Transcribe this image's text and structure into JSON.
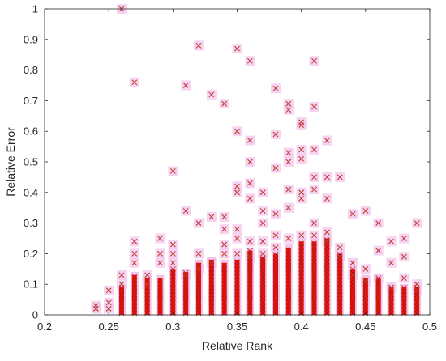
{
  "chart_data": {
    "type": "scatter",
    "xlabel": "Relative Rank",
    "ylabel": "Relative Error",
    "xlim": [
      0.2,
      0.5
    ],
    "ylim": [
      0,
      1
    ],
    "xticks": [
      "0.2",
      "0.25",
      "0.3",
      "0.35",
      "0.4",
      "0.45",
      "0.5"
    ],
    "yticks": [
      "0",
      "0.1",
      "0.2",
      "0.3",
      "0.4",
      "0.5",
      "0.6",
      "0.7",
      "0.8",
      "0.9",
      "1"
    ],
    "grid": false,
    "legend": "none",
    "marker": "x",
    "colors": {
      "marker": "#c0392b",
      "marker_dense": "#e8170f",
      "halo": "#f2c4ec",
      "axis": "#262626"
    },
    "series": [
      {
        "points": [
          [
            0.24,
            0.02
          ],
          [
            0.24,
            0.03
          ],
          [
            0.25,
            0.08
          ],
          [
            0.25,
            0.04
          ],
          [
            0.25,
            0.02
          ],
          [
            0.26,
            1.0
          ],
          [
            0.26,
            0.13
          ],
          [
            0.26,
            0.1
          ],
          [
            0.27,
            0.76
          ],
          [
            0.27,
            0.24
          ],
          [
            0.27,
            0.2
          ],
          [
            0.27,
            0.17
          ],
          [
            0.28,
            0.13
          ],
          [
            0.28,
            0.1
          ],
          [
            0.29,
            0.25
          ],
          [
            0.29,
            0.2
          ],
          [
            0.29,
            0.17
          ],
          [
            0.3,
            0.47
          ],
          [
            0.3,
            0.23
          ],
          [
            0.3,
            0.2
          ],
          [
            0.3,
            0.17
          ],
          [
            0.31,
            0.75
          ],
          [
            0.31,
            0.34
          ],
          [
            0.31,
            0.13
          ],
          [
            0.32,
            0.88
          ],
          [
            0.32,
            0.3
          ],
          [
            0.32,
            0.2
          ],
          [
            0.32,
            0.15
          ],
          [
            0.33,
            0.72
          ],
          [
            0.33,
            0.32
          ],
          [
            0.33,
            0.17
          ],
          [
            0.34,
            0.69
          ],
          [
            0.34,
            0.32
          ],
          [
            0.34,
            0.28
          ],
          [
            0.34,
            0.23
          ],
          [
            0.34,
            0.2
          ],
          [
            0.35,
            0.87
          ],
          [
            0.35,
            0.6
          ],
          [
            0.35,
            0.42
          ],
          [
            0.35,
            0.4
          ],
          [
            0.35,
            0.28
          ],
          [
            0.35,
            0.25
          ],
          [
            0.35,
            0.2
          ],
          [
            0.36,
            0.83
          ],
          [
            0.36,
            0.57
          ],
          [
            0.36,
            0.5
          ],
          [
            0.36,
            0.43
          ],
          [
            0.36,
            0.38
          ],
          [
            0.36,
            0.24
          ],
          [
            0.36,
            0.19
          ],
          [
            0.37,
            0.4
          ],
          [
            0.37,
            0.34
          ],
          [
            0.37,
            0.3
          ],
          [
            0.37,
            0.24
          ],
          [
            0.37,
            0.2
          ],
          [
            0.38,
            0.74
          ],
          [
            0.38,
            0.59
          ],
          [
            0.38,
            0.48
          ],
          [
            0.38,
            0.33
          ],
          [
            0.38,
            0.26
          ],
          [
            0.38,
            0.22
          ],
          [
            0.39,
            0.69
          ],
          [
            0.39,
            0.67
          ],
          [
            0.39,
            0.53
          ],
          [
            0.39,
            0.5
          ],
          [
            0.39,
            0.41
          ],
          [
            0.39,
            0.35
          ],
          [
            0.39,
            0.25
          ],
          [
            0.4,
            0.63
          ],
          [
            0.4,
            0.62
          ],
          [
            0.4,
            0.54
          ],
          [
            0.4,
            0.51
          ],
          [
            0.4,
            0.4
          ],
          [
            0.4,
            0.38
          ],
          [
            0.4,
            0.26
          ],
          [
            0.41,
            0.83
          ],
          [
            0.41,
            0.68
          ],
          [
            0.41,
            0.54
          ],
          [
            0.41,
            0.45
          ],
          [
            0.41,
            0.41
          ],
          [
            0.41,
            0.3
          ],
          [
            0.41,
            0.26
          ],
          [
            0.42,
            0.57
          ],
          [
            0.42,
            0.45
          ],
          [
            0.42,
            0.38
          ],
          [
            0.42,
            0.27
          ],
          [
            0.42,
            0.24
          ],
          [
            0.43,
            0.45
          ],
          [
            0.43,
            0.22
          ],
          [
            0.43,
            0.19
          ],
          [
            0.44,
            0.33
          ],
          [
            0.44,
            0.17
          ],
          [
            0.44,
            0.13
          ],
          [
            0.45,
            0.34
          ],
          [
            0.45,
            0.15
          ],
          [
            0.45,
            0.11
          ],
          [
            0.46,
            0.3
          ],
          [
            0.46,
            0.21
          ],
          [
            0.46,
            0.12
          ],
          [
            0.47,
            0.24
          ],
          [
            0.47,
            0.17
          ],
          [
            0.47,
            0.09
          ],
          [
            0.48,
            0.25
          ],
          [
            0.48,
            0.19
          ],
          [
            0.48,
            0.12
          ],
          [
            0.49,
            0.3
          ],
          [
            0.49,
            0.1
          ],
          [
            0.49,
            0.08
          ]
        ],
        "clusters": [
          {
            "x": 0.26,
            "ymax": 0.09
          },
          {
            "x": 0.27,
            "ymax": 0.13
          },
          {
            "x": 0.28,
            "ymax": 0.12
          },
          {
            "x": 0.29,
            "ymax": 0.12
          },
          {
            "x": 0.3,
            "ymax": 0.15
          },
          {
            "x": 0.31,
            "ymax": 0.14
          },
          {
            "x": 0.32,
            "ymax": 0.17
          },
          {
            "x": 0.33,
            "ymax": 0.18
          },
          {
            "x": 0.34,
            "ymax": 0.17
          },
          {
            "x": 0.35,
            "ymax": 0.18
          },
          {
            "x": 0.36,
            "ymax": 0.21
          },
          {
            "x": 0.37,
            "ymax": 0.19
          },
          {
            "x": 0.38,
            "ymax": 0.2
          },
          {
            "x": 0.39,
            "ymax": 0.22
          },
          {
            "x": 0.4,
            "ymax": 0.24
          },
          {
            "x": 0.41,
            "ymax": 0.24
          },
          {
            "x": 0.42,
            "ymax": 0.25
          },
          {
            "x": 0.43,
            "ymax": 0.2
          },
          {
            "x": 0.44,
            "ymax": 0.15
          },
          {
            "x": 0.45,
            "ymax": 0.12
          },
          {
            "x": 0.46,
            "ymax": 0.12
          },
          {
            "x": 0.47,
            "ymax": 0.09
          },
          {
            "x": 0.48,
            "ymax": 0.09
          },
          {
            "x": 0.49,
            "ymax": 0.09
          }
        ]
      }
    ]
  }
}
